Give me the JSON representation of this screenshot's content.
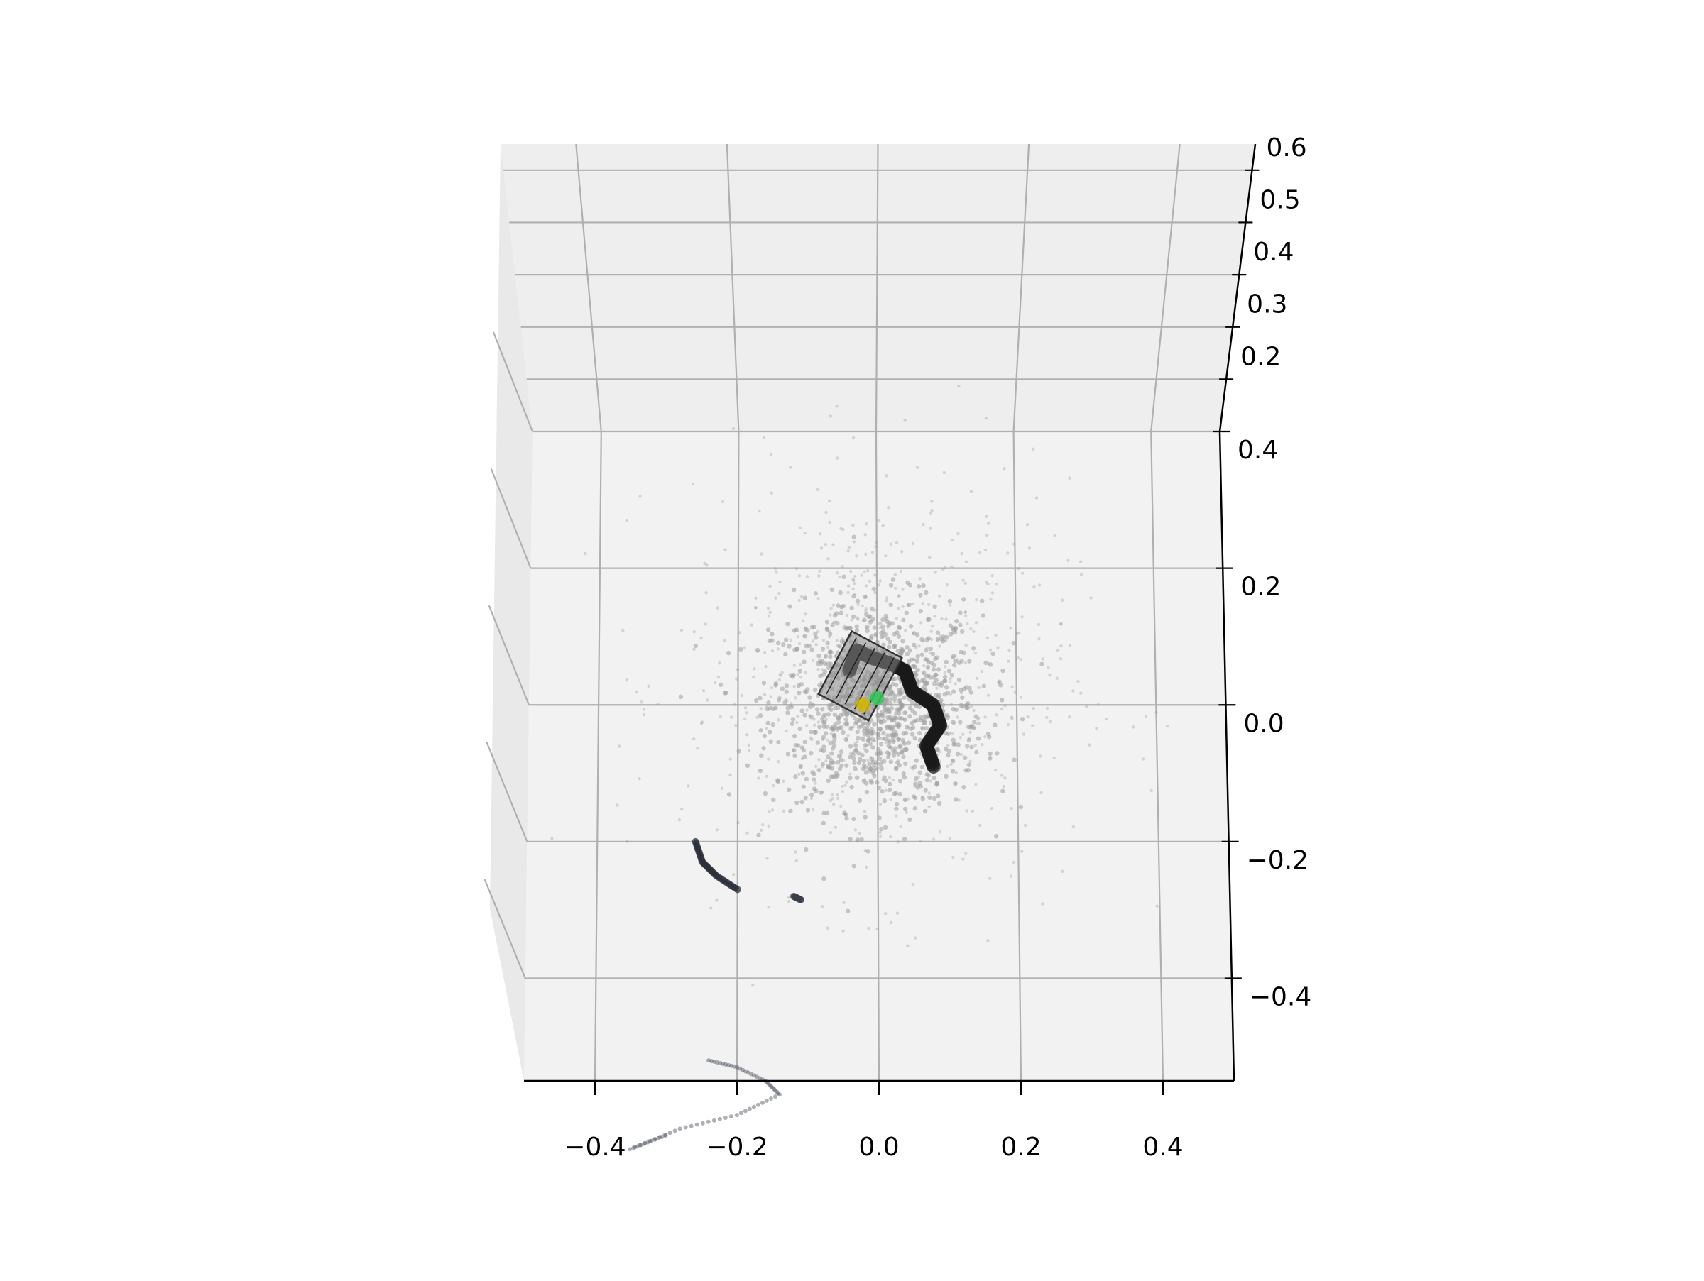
{
  "chart_data": {
    "type": "scatter",
    "projection": "3d",
    "view": "top-down perspective",
    "title": "",
    "xlabel": "",
    "ylabel": "",
    "zlabel": "",
    "grid": true,
    "xlim": [
      -0.5,
      0.5
    ],
    "ylim": [
      -0.55,
      0.4
    ],
    "zlim": [
      0.1,
      0.65
    ],
    "x_ticks": [
      -0.4,
      -0.2,
      0.0,
      0.2,
      0.4
    ],
    "x_tick_labels": [
      "−0.4",
      "−0.2",
      "0.0",
      "0.2",
      "0.4"
    ],
    "y_ticks": [
      -0.4,
      -0.2,
      0.0,
      0.2,
      0.4
    ],
    "y_tick_labels": [
      "−0.4",
      "−0.2",
      "0.0",
      "0.2",
      "0.4"
    ],
    "z_ticks": [
      0.2,
      0.3,
      0.4,
      0.5,
      0.6
    ],
    "z_tick_labels": [
      "0.2",
      "0.3",
      "0.4",
      "0.5",
      "0.6"
    ],
    "series": [
      {
        "role": "point-cloud",
        "color": "#a8a8a8",
        "approx_center": [
          0.0,
          0.0
        ],
        "approx_extent": [
          [
            -0.35,
            0.25
          ],
          [
            -0.3,
            0.38
          ]
        ]
      },
      {
        "role": "trajectory",
        "color": "#1a1a1a",
        "points": [
          [
            -0.04,
            0.05
          ],
          [
            -0.03,
            0.08
          ],
          [
            -0.01,
            0.07
          ],
          [
            0.02,
            0.06
          ],
          [
            0.04,
            0.05
          ],
          [
            0.05,
            0.02
          ],
          [
            0.08,
            0.0
          ],
          [
            0.09,
            -0.03
          ],
          [
            0.07,
            -0.06
          ],
          [
            0.08,
            -0.09
          ]
        ]
      },
      {
        "role": "trajectory",
        "color": "#2a2f3a",
        "points": [
          [
            -0.26,
            -0.2
          ],
          [
            -0.25,
            -0.23
          ],
          [
            -0.23,
            -0.25
          ],
          [
            -0.2,
            -0.27
          ]
        ]
      },
      {
        "role": "trajectory",
        "color": "#3a3f4a",
        "points": [
          [
            -0.12,
            -0.28
          ],
          [
            -0.11,
            -0.285
          ]
        ]
      },
      {
        "role": "scan-fragment",
        "color": "#4a4f5a",
        "points": [
          [
            -0.24,
            -0.52
          ],
          [
            -0.2,
            -0.53
          ],
          [
            -0.16,
            -0.55
          ],
          [
            -0.14,
            -0.57
          ],
          [
            -0.2,
            -0.6
          ],
          [
            -0.28,
            -0.62
          ],
          [
            -0.35,
            -0.65
          ],
          [
            -0.3,
            -0.63
          ]
        ]
      }
    ],
    "highlights": [
      {
        "role": "camera-frustum",
        "color": "#333333",
        "at": [
          -0.02,
          0.04
        ]
      },
      {
        "role": "marker",
        "color": "#d4b800",
        "at": [
          -0.02,
          0.0
        ]
      },
      {
        "role": "marker",
        "color": "#34c759",
        "at": [
          0.0,
          0.01
        ]
      }
    ]
  }
}
